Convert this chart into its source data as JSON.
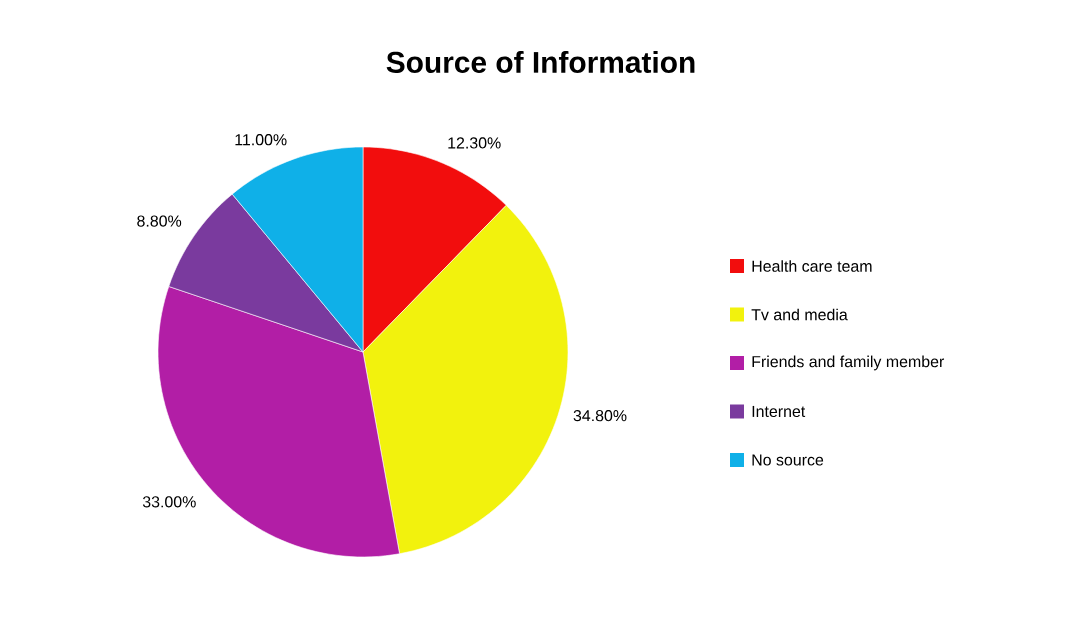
{
  "chart_data": {
    "type": "pie",
    "title": "Source of Information",
    "categories": [
      "Health care team",
      "Tv and media",
      "Friends and family member",
      "Internet",
      "No source"
    ],
    "values": [
      12.3,
      34.8,
      33.0,
      8.8,
      11.0
    ],
    "value_labels": [
      "12.30%",
      "34.80%",
      "33.00%",
      "8.80%",
      "11.00%"
    ],
    "colors": [
      "#f20d0d",
      "#f2f20d",
      "#b21ea6",
      "#7a3a9e",
      "#0fb0e8"
    ],
    "legend": "right"
  }
}
